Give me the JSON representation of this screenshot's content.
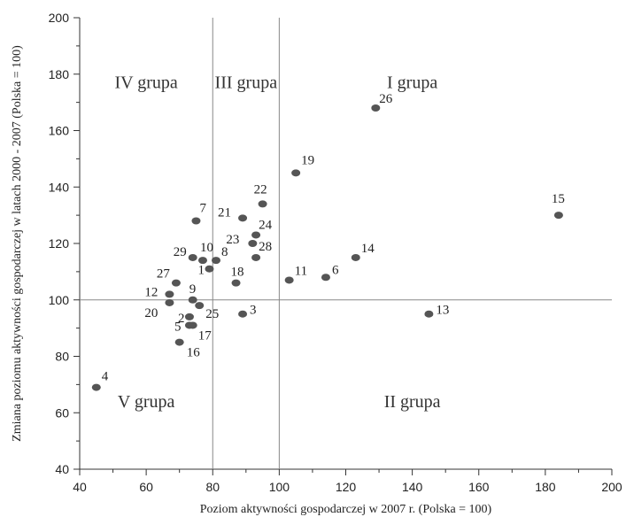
{
  "chart_data": {
    "type": "scatter",
    "xlabel": "Poziom aktywności gospodarczej w 2007 r. (Polska = 100)",
    "ylabel": "Zmiana poziomu aktywności gospodarczej w latach 2000 - 2007 (Polska = 100)",
    "xlim": [
      40,
      200
    ],
    "ylim": [
      40,
      200
    ],
    "x_ticks": [
      40,
      60,
      80,
      100,
      120,
      140,
      160,
      180,
      200
    ],
    "y_ticks": [
      40,
      60,
      80,
      100,
      120,
      140,
      160,
      180,
      200
    ],
    "x_tick_labels": [
      "40",
      "60",
      "80",
      "100",
      "120",
      "140",
      "160",
      "180",
      "200"
    ],
    "y_tick_labels": [
      "40",
      "60",
      "80",
      "100",
      "120",
      "140",
      "160",
      "180",
      "200"
    ],
    "reference_lines": {
      "x": [
        80,
        100
      ],
      "y": [
        100
      ]
    },
    "grid": false,
    "marker_color": "#555555",
    "points": [
      {
        "label": "1",
        "x": 79,
        "y": 111
      },
      {
        "label": "2",
        "x": 73,
        "y": 94
      },
      {
        "label": "3",
        "x": 89,
        "y": 95
      },
      {
        "label": "4",
        "x": 45,
        "y": 69
      },
      {
        "label": "5",
        "x": 73,
        "y": 91
      },
      {
        "label": "6",
        "x": 114,
        "y": 108
      },
      {
        "label": "7",
        "x": 75,
        "y": 128
      },
      {
        "label": "8",
        "x": 81,
        "y": 114
      },
      {
        "label": "9",
        "x": 74,
        "y": 100
      },
      {
        "label": "10",
        "x": 77,
        "y": 114
      },
      {
        "label": "11",
        "x": 103,
        "y": 107
      },
      {
        "label": "12",
        "x": 67,
        "y": 102
      },
      {
        "label": "13",
        "x": 145,
        "y": 95
      },
      {
        "label": "14",
        "x": 123,
        "y": 115
      },
      {
        "label": "15",
        "x": 184,
        "y": 130
      },
      {
        "label": "16",
        "x": 70,
        "y": 85
      },
      {
        "label": "17",
        "x": 74,
        "y": 91
      },
      {
        "label": "18",
        "x": 87,
        "y": 106
      },
      {
        "label": "19",
        "x": 105,
        "y": 145
      },
      {
        "label": "20",
        "x": 67,
        "y": 99
      },
      {
        "label": "21",
        "x": 89,
        "y": 129
      },
      {
        "label": "22",
        "x": 95,
        "y": 134
      },
      {
        "label": "23",
        "x": 92,
        "y": 120
      },
      {
        "label": "24",
        "x": 93,
        "y": 123
      },
      {
        "label": "25",
        "x": 76,
        "y": 98
      },
      {
        "label": "26",
        "x": 129,
        "y": 168
      },
      {
        "label": "27",
        "x": 69,
        "y": 106
      },
      {
        "label": "28",
        "x": 93,
        "y": 115
      },
      {
        "label": "29",
        "x": 74,
        "y": 115
      }
    ],
    "group_labels": [
      "I grupa",
      "II grupa",
      "III grupa",
      "IV grupa",
      "V grupa"
    ]
  }
}
